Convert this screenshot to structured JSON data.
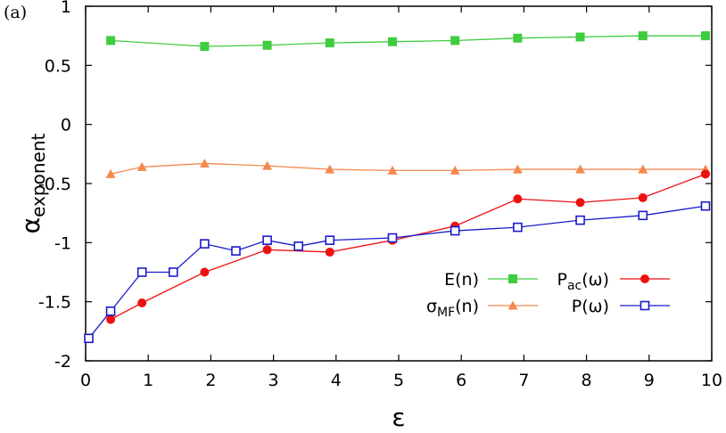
{
  "chart_data": {
    "type": "line",
    "panel_label": "(a)",
    "xlabel": "ε",
    "ylabel_base": "α",
    "ylabel_sub": "exponent",
    "xlim": [
      0,
      10
    ],
    "ylim": [
      -2,
      1
    ],
    "xticks": [
      0,
      1,
      2,
      3,
      4,
      5,
      6,
      7,
      8,
      9,
      10
    ],
    "yticks": [
      -2,
      -1.5,
      -1,
      -0.5,
      0,
      0.5,
      1
    ],
    "ytick_labels": [
      "-2",
      "-1.5",
      "-1",
      "-0.5",
      "0",
      "0.5",
      "1"
    ],
    "grid": false,
    "legend_position": "lower-right",
    "series": [
      {
        "name": "E(n)",
        "name_base": "E(n)",
        "name_sub": "",
        "name_tail": "",
        "color": "#3fcc3f",
        "marker": "square-filled",
        "x": [
          0.4,
          1.9,
          2.9,
          3.9,
          4.9,
          5.9,
          6.9,
          7.9,
          8.9,
          9.9
        ],
        "y": [
          0.71,
          0.66,
          0.67,
          0.69,
          0.7,
          0.71,
          0.73,
          0.74,
          0.75,
          0.75
        ]
      },
      {
        "name": "σMF(n)",
        "name_base": "σ",
        "name_sub": "MF",
        "name_tail": "(n)",
        "color": "#f4894f",
        "marker": "triangle-filled",
        "x": [
          0.4,
          0.9,
          1.9,
          2.9,
          3.9,
          4.9,
          5.9,
          6.9,
          7.9,
          8.9,
          9.9
        ],
        "y": [
          -0.42,
          -0.36,
          -0.33,
          -0.35,
          -0.38,
          -0.39,
          -0.39,
          -0.38,
          -0.38,
          -0.38,
          -0.38
        ]
      },
      {
        "name": "Pac(ω)",
        "name_base": "P",
        "name_sub": "ac",
        "name_tail": "(ω)",
        "color": "#ee1111",
        "marker": "circle-filled",
        "x": [
          0.4,
          0.9,
          1.9,
          2.9,
          3.9,
          4.9,
          5.9,
          6.9,
          7.9,
          8.9,
          9.9
        ],
        "y": [
          -1.65,
          -1.51,
          -1.25,
          -1.06,
          -1.08,
          -0.98,
          -0.86,
          -0.63,
          -0.66,
          -0.62,
          -0.42
        ]
      },
      {
        "name": "P(ω)",
        "name_base": "P(ω)",
        "name_sub": "",
        "name_tail": "",
        "color": "#1a1acc",
        "marker": "square-open",
        "x": [
          0.05,
          0.4,
          0.9,
          1.4,
          1.9,
          2.4,
          2.9,
          3.4,
          3.9,
          4.9,
          5.9,
          6.9,
          7.9,
          8.9,
          9.9
        ],
        "y": [
          -1.81,
          -1.58,
          -1.25,
          -1.25,
          -1.01,
          -1.07,
          -0.98,
          -1.03,
          -0.98,
          -0.96,
          -0.9,
          -0.87,
          -0.81,
          -0.77,
          -0.69
        ]
      }
    ]
  }
}
